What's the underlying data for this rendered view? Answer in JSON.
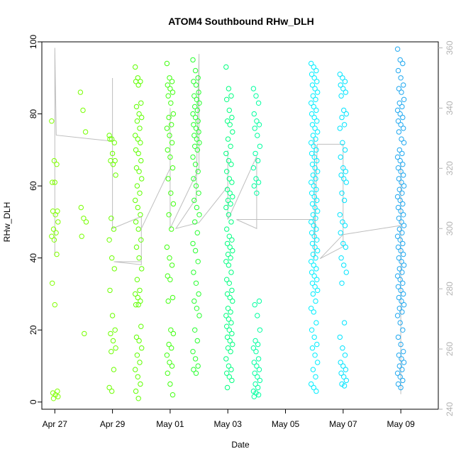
{
  "chart_data": {
    "type": "scatter",
    "title": "ATOM4 Southbound RHw_DLH",
    "xlabel": "Date",
    "ylabel": "RHw_DLH",
    "x_ticks": [
      {
        "label": "Apr 27",
        "day": 0
      },
      {
        "label": "Apr 29",
        "day": 2
      },
      {
        "label": "May 01",
        "day": 4
      },
      {
        "label": "May 03",
        "day": 6
      },
      {
        "label": "May 05",
        "day": 8
      },
      {
        "label": "May 07",
        "day": 10
      },
      {
        "label": "May 09",
        "day": 12
      }
    ],
    "xlim": [
      -0.45,
      13.3
    ],
    "ylim": [
      -2,
      100
    ],
    "y_ticks": [
      0,
      20,
      40,
      60,
      80,
      100
    ],
    "y2lim": [
      240,
      362
    ],
    "y2_ticks": [
      240,
      260,
      280,
      300,
      320,
      340,
      360
    ],
    "grid": false,
    "series_points": "hollow circles colored green to blue by date",
    "series_line": "thin gray line on the secondary axis",
    "colors": {
      "axis": "#000000",
      "secondary_axis": "#b3b3b3",
      "line": "#bebebe",
      "points_early": "#66ff00",
      "points_mid": "#00ffcc",
      "points_late": "#0088ee"
    },
    "clusters": [
      {
        "day": 0.0,
        "values": [
          78,
          67,
          66,
          61,
          61,
          53,
          53,
          52,
          50,
          48,
          47,
          46,
          45,
          41,
          33,
          27,
          3,
          2.5,
          2,
          1.5,
          1
        ],
        "color": "#80ff00"
      },
      {
        "day": 1.0,
        "values": [
          86,
          81,
          75,
          54,
          51,
          50,
          46,
          19
        ],
        "color": "#77ff00"
      },
      {
        "day": 2.0,
        "values": [
          74,
          73,
          72,
          73,
          69,
          67,
          67,
          66,
          63,
          51,
          48,
          45,
          40,
          37,
          31,
          24,
          20,
          19,
          17,
          15,
          14,
          9,
          4,
          3
        ],
        "color": "#6cff00"
      },
      {
        "day": 2.9,
        "values": [
          93,
          90,
          89,
          89,
          88,
          83,
          82,
          80,
          79,
          78,
          76,
          74,
          73,
          72,
          70,
          69,
          67,
          65,
          64,
          62,
          60,
          58,
          56,
          54,
          52,
          50,
          48,
          45,
          43,
          40,
          37,
          34,
          31,
          30,
          29,
          28,
          27,
          27,
          21,
          18,
          17,
          15,
          13,
          11,
          9,
          7,
          5,
          3,
          1
        ],
        "color": "#5fff00"
      },
      {
        "day": 4.0,
        "values": [
          94,
          90,
          89,
          88,
          87,
          86,
          85,
          83,
          80,
          79,
          77,
          76,
          74,
          72,
          70,
          68,
          65,
          62,
          58,
          55,
          52,
          48,
          43,
          40,
          38,
          35,
          34,
          29,
          28,
          20,
          19,
          16,
          15,
          13,
          11,
          10,
          8,
          5,
          2
        ],
        "color": "#40ff10"
      },
      {
        "day": 4.9,
        "values": [
          95,
          92,
          90,
          89,
          88,
          86,
          85,
          84,
          83,
          82,
          81,
          80,
          79,
          78,
          77,
          76,
          75,
          74,
          73,
          72,
          71,
          70,
          68,
          66,
          64,
          62,
          60,
          58,
          56,
          54,
          52,
          50,
          47,
          44,
          42,
          39,
          36,
          33,
          30,
          28,
          26,
          24,
          20,
          17,
          14,
          12,
          10,
          9,
          8
        ],
        "color": "#28ff30"
      },
      {
        "day": 6.05,
        "values": [
          93,
          87,
          85,
          84,
          81,
          79,
          78,
          77,
          75,
          73,
          71,
          69,
          67,
          66,
          64,
          62,
          61,
          59,
          58,
          57,
          56,
          55,
          54,
          52,
          50,
          48,
          46,
          45,
          44,
          43,
          42,
          41,
          40,
          39,
          38,
          36,
          34,
          33,
          31,
          30,
          29,
          28,
          26,
          25,
          24,
          23,
          22,
          21,
          20,
          19,
          18,
          17,
          16,
          15,
          14,
          12,
          10,
          9,
          8,
          7,
          6,
          4
        ],
        "color": "#00ff80"
      },
      {
        "day": 7.0,
        "values": [
          87,
          85,
          83,
          80,
          78,
          77,
          76,
          74,
          71,
          69,
          67,
          65,
          62,
          61,
          60,
          58,
          28,
          27,
          24,
          20,
          17,
          16,
          15,
          14,
          12,
          11,
          10,
          9,
          8,
          7,
          6,
          5,
          4,
          3,
          2.5,
          2,
          1.5
        ],
        "color": "#00ffa0"
      },
      {
        "day": 9.0,
        "values": [
          94,
          93,
          92,
          91,
          90,
          89,
          88,
          87,
          86,
          85,
          84,
          83,
          82,
          81,
          80,
          79,
          78,
          77,
          76,
          75,
          74,
          73,
          72,
          71,
          70,
          69,
          68,
          67,
          66,
          65,
          64,
          63,
          62,
          61,
          60,
          59,
          58,
          57,
          56,
          55,
          54,
          53,
          52,
          51,
          50,
          49,
          48,
          47,
          46,
          45,
          44,
          43,
          42,
          41,
          40,
          39,
          38,
          37,
          36,
          35,
          34,
          33,
          32,
          31,
          30,
          28,
          26,
          25,
          22,
          20,
          18,
          16,
          15,
          13,
          11,
          9,
          7,
          5,
          4,
          3
        ],
        "color": "#00eeff"
      },
      {
        "day": 10.0,
        "values": [
          91,
          90,
          89,
          88,
          87,
          86,
          85,
          81,
          80,
          79,
          77,
          76,
          72,
          70,
          68,
          65,
          64,
          63,
          62,
          61,
          58,
          56,
          52,
          50,
          49,
          47,
          44,
          43,
          40,
          38,
          36,
          33,
          22,
          18,
          15,
          13,
          11,
          10,
          9,
          8,
          7,
          6,
          5,
          4.5
        ],
        "color": "#00e4ff"
      },
      {
        "day": 12.0,
        "values": [
          98,
          95,
          94,
          92,
          90,
          88,
          87,
          86,
          84,
          83,
          82,
          81,
          80,
          79,
          78,
          77,
          76,
          75,
          73,
          72,
          70,
          69,
          68,
          67,
          66,
          65,
          64,
          63,
          62,
          61,
          60,
          59,
          58,
          57,
          56,
          55,
          54,
          53,
          52,
          51,
          50,
          49,
          48,
          47,
          46,
          45,
          44,
          43,
          42,
          41,
          40,
          39,
          38,
          37,
          36,
          35,
          34,
          33,
          32,
          31,
          30,
          29,
          28,
          27,
          26,
          25,
          24,
          22,
          20,
          18,
          16,
          14,
          13,
          12,
          11,
          10,
          9,
          8,
          7,
          6,
          5,
          4
        ],
        "color": "#1fa8f0"
      }
    ],
    "line_path": [
      [
        0.0,
        291
      ],
      [
        0.0,
        360
      ],
      [
        0.05,
        331
      ],
      [
        2.0,
        329
      ],
      [
        2.0,
        350
      ],
      [
        2.0,
        300
      ],
      [
        3.0,
        304
      ],
      [
        3.0,
        288
      ],
      [
        2.05,
        289
      ],
      [
        3.0,
        289
      ],
      [
        3.0,
        300
      ],
      [
        3.5,
        310
      ],
      [
        4.0,
        320
      ],
      [
        4.0,
        340
      ],
      [
        4.0,
        300
      ],
      [
        5.0,
        320
      ],
      [
        5.0,
        358
      ],
      [
        4.9,
        310
      ],
      [
        4.2,
        300
      ],
      [
        5.0,
        302
      ],
      [
        6.0,
        314
      ],
      [
        6.0,
        326
      ],
      [
        6.0,
        303
      ],
      [
        6.1,
        305
      ],
      [
        7.0,
        324
      ],
      [
        7.0,
        300
      ],
      [
        6.3,
        303
      ],
      [
        9.0,
        303
      ],
      [
        9.0,
        330
      ],
      [
        9.0,
        290
      ],
      [
        9.1,
        328
      ],
      [
        10.0,
        328
      ],
      [
        10.0,
        294
      ],
      [
        9.2,
        290
      ],
      [
        10.0,
        298
      ],
      [
        12.0,
        301
      ],
      [
        12.0,
        245
      ],
      [
        12.0,
        322
      ]
    ]
  }
}
